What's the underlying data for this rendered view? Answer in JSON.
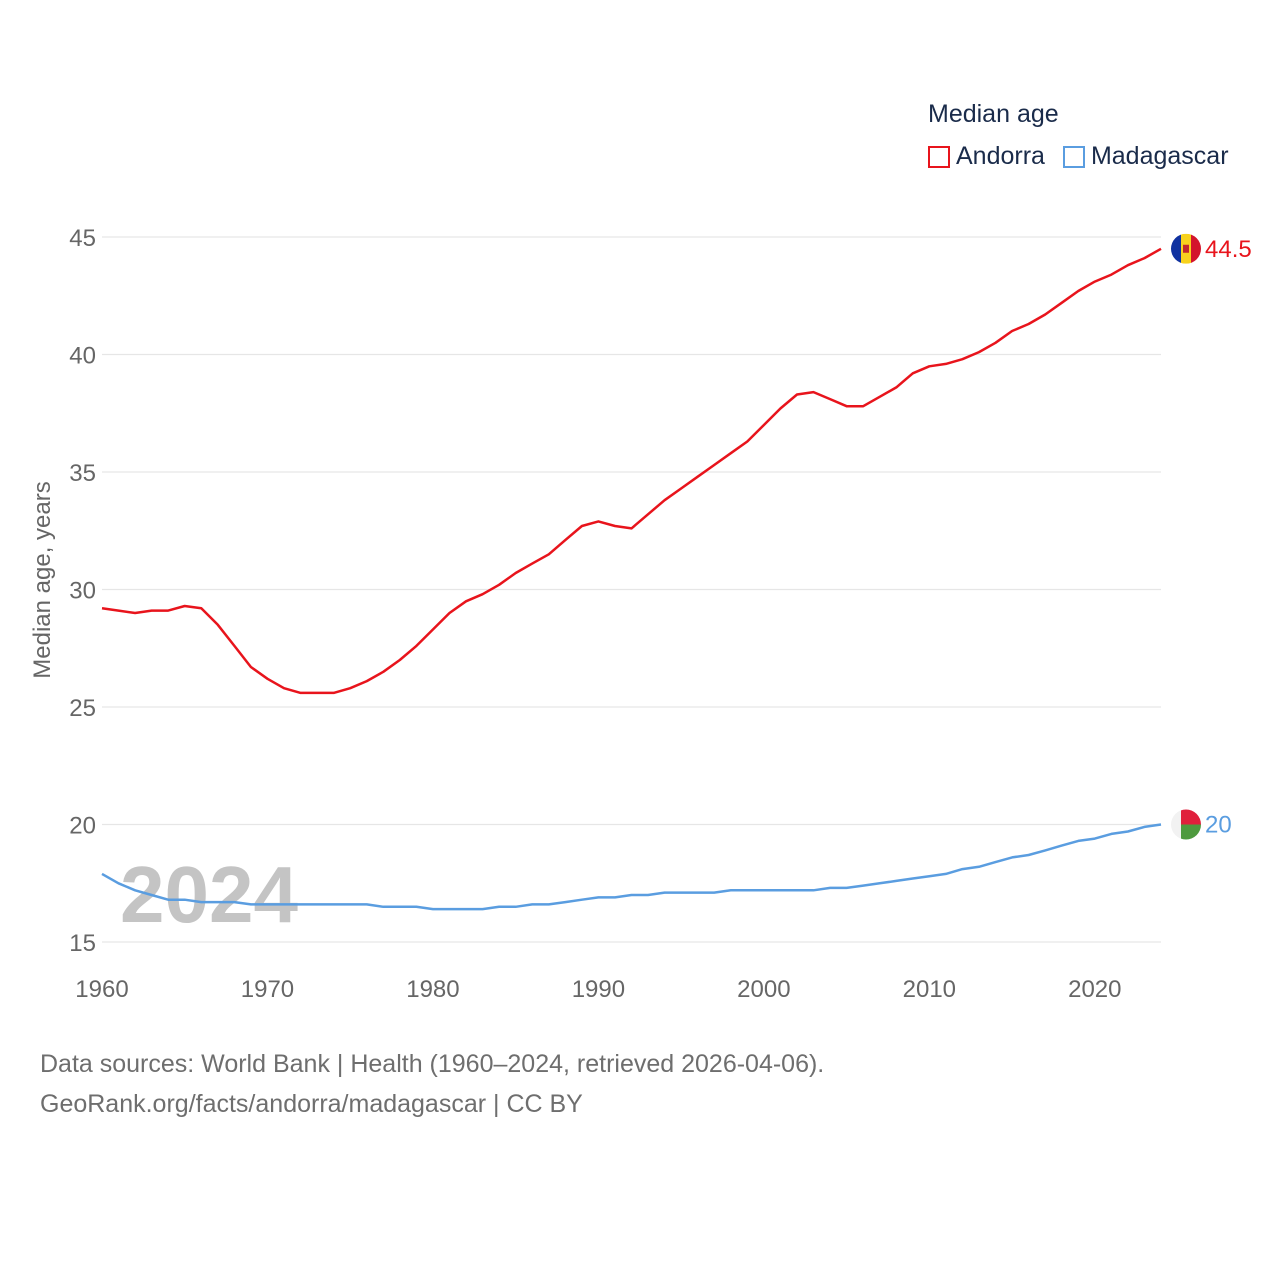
{
  "legend": {
    "title": "Median age",
    "items": [
      {
        "name": "Andorra",
        "color": "#e8141c"
      },
      {
        "name": "Madagascar",
        "color": "#5a9de0"
      }
    ]
  },
  "footer": {
    "line1": "Data sources: World Bank | Health (1960–2024, retrieved 2026-04-06).",
    "line2": "GeoRank.org/facts/andorra/madagascar | CC BY"
  },
  "chart_data": {
    "type": "line",
    "title": "Median age",
    "xlabel": "",
    "ylabel": "Median age, years",
    "xlim": [
      1960,
      2024
    ],
    "ylim": [
      15,
      45
    ],
    "xticks": [
      1960,
      1970,
      1980,
      1990,
      2000,
      2010,
      2020
    ],
    "yticks": [
      15,
      20,
      25,
      30,
      35,
      40,
      45
    ],
    "grid": true,
    "legend_position": "top-right",
    "current_year": "2024",
    "x": [
      1960,
      1961,
      1962,
      1963,
      1964,
      1965,
      1966,
      1967,
      1968,
      1969,
      1970,
      1971,
      1972,
      1973,
      1974,
      1975,
      1976,
      1977,
      1978,
      1979,
      1980,
      1981,
      1982,
      1983,
      1984,
      1985,
      1986,
      1987,
      1988,
      1989,
      1990,
      1991,
      1992,
      1993,
      1994,
      1995,
      1996,
      1997,
      1998,
      1999,
      2000,
      2001,
      2002,
      2003,
      2004,
      2005,
      2006,
      2007,
      2008,
      2009,
      2010,
      2011,
      2012,
      2013,
      2014,
      2015,
      2016,
      2017,
      2018,
      2019,
      2020,
      2021,
      2022,
      2023,
      2024
    ],
    "series": [
      {
        "name": "Andorra",
        "color": "#e8141c",
        "end_label": "44.5",
        "values": [
          29.2,
          29.1,
          29.0,
          29.1,
          29.1,
          29.3,
          29.2,
          28.5,
          27.6,
          26.7,
          26.2,
          25.8,
          25.6,
          25.6,
          25.6,
          25.8,
          26.1,
          26.5,
          27.0,
          27.6,
          28.3,
          29.0,
          29.5,
          29.8,
          30.2,
          30.7,
          31.1,
          31.5,
          32.1,
          32.7,
          32.9,
          32.7,
          32.6,
          33.2,
          33.8,
          34.3,
          34.8,
          35.3,
          35.8,
          36.3,
          37.0,
          37.7,
          38.3,
          38.4,
          38.1,
          37.8,
          37.8,
          38.2,
          38.6,
          39.2,
          39.5,
          39.6,
          39.8,
          40.1,
          40.5,
          41.0,
          41.3,
          41.7,
          42.2,
          42.7,
          43.1,
          43.4,
          43.8,
          44.1,
          44.5
        ]
      },
      {
        "name": "Madagascar",
        "color": "#5a9de0",
        "end_label": "20",
        "values": [
          17.9,
          17.5,
          17.2,
          17.0,
          16.8,
          16.8,
          16.7,
          16.7,
          16.7,
          16.6,
          16.6,
          16.6,
          16.6,
          16.6,
          16.6,
          16.6,
          16.6,
          16.5,
          16.5,
          16.5,
          16.4,
          16.4,
          16.4,
          16.4,
          16.5,
          16.5,
          16.6,
          16.6,
          16.7,
          16.8,
          16.9,
          16.9,
          17.0,
          17.0,
          17.1,
          17.1,
          17.1,
          17.1,
          17.2,
          17.2,
          17.2,
          17.2,
          17.2,
          17.2,
          17.3,
          17.3,
          17.4,
          17.5,
          17.6,
          17.7,
          17.8,
          17.9,
          18.1,
          18.2,
          18.4,
          18.6,
          18.7,
          18.9,
          19.1,
          19.3,
          19.4,
          19.6,
          19.7,
          19.9,
          20.0
        ]
      }
    ]
  }
}
